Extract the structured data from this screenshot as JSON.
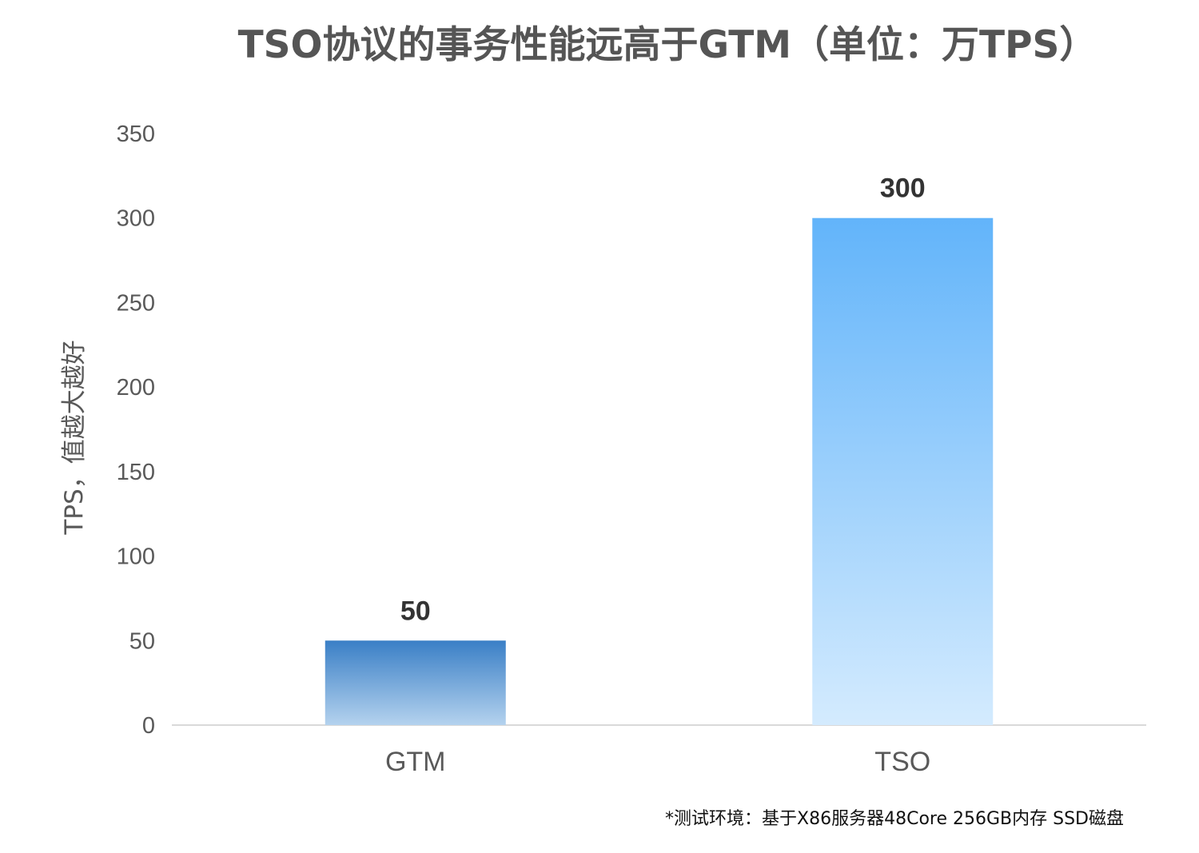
{
  "chart_data": {
    "type": "bar",
    "title": "TSO协议的事务性能远高于GTM（单位：万TPS）",
    "xlabel": "",
    "ylabel": "TPS，值越大越好",
    "categories": [
      "GTM",
      "TSO"
    ],
    "values": [
      50,
      300
    ],
    "data_labels": [
      "50",
      "300"
    ],
    "ylim": [
      0,
      350
    ],
    "yticks": [
      0,
      50,
      100,
      150,
      200,
      250,
      300,
      350
    ],
    "grid": false,
    "legend": "none",
    "bar_gradients": [
      {
        "top": "#3a7fc6",
        "bottom": "#b4d2ee"
      },
      {
        "top": "#62b4fa",
        "bottom": "#d4ebfe"
      }
    ],
    "axis_color": "#d9d9d9",
    "footnote": "*测试环境：基于X86服务器48Core 256GB内存 SSD磁盘"
  }
}
